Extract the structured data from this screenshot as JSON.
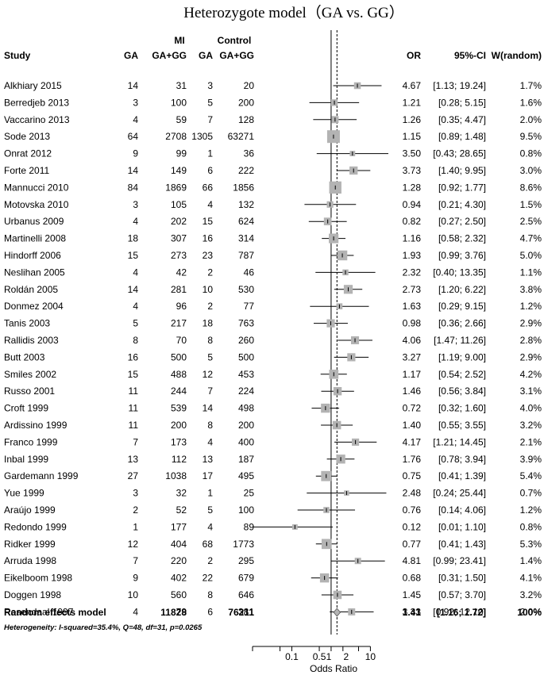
{
  "chart_data": {
    "type": "forest",
    "title": "Heterozygote model（GA vs. GG）",
    "group_labels": {
      "mi": "MI",
      "control": "Control"
    },
    "columns": {
      "study": "Study",
      "mi_events": "GA",
      "mi_total": "GA+GG",
      "ctrl_events": "GA",
      "ctrl_total": "GA+GG",
      "or": "OR",
      "ci": "95%-CI",
      "weight": "W(random)"
    },
    "studies": [
      {
        "name": "Alkhiary 2015",
        "e1": "14",
        "n1": "31",
        "e2": "3",
        "n2": "20",
        "or": 4.67,
        "lo": 1.13,
        "hi": 19.24,
        "or_text": "4.67",
        "ci_text": "[1.13; 19.24]",
        "w": 1.7,
        "w_text": "1.7%"
      },
      {
        "name": "Berredjeb 2013",
        "e1": "3",
        "n1": "100",
        "e2": "5",
        "n2": "200",
        "or": 1.21,
        "lo": 0.28,
        "hi": 5.15,
        "or_text": "1.21",
        "ci_text": "[0.28;  5.15]",
        "w": 1.6,
        "w_text": "1.6%"
      },
      {
        "name": "Vaccarino 2013",
        "e1": "4",
        "n1": "59",
        "e2": "7",
        "n2": "128",
        "or": 1.26,
        "lo": 0.35,
        "hi": 4.47,
        "or_text": "1.26",
        "ci_text": "[0.35;  4.47]",
        "w": 2.0,
        "w_text": "2.0%"
      },
      {
        "name": "Sode 2013",
        "e1": "64",
        "n1": "2708",
        "e2": "1305",
        "n2": "63271",
        "or": 1.15,
        "lo": 0.89,
        "hi": 1.48,
        "or_text": "1.15",
        "ci_text": "[0.89;  1.48]",
        "w": 9.5,
        "w_text": "9.5%"
      },
      {
        "name": "Onrat 2012",
        "e1": "9",
        "n1": "99",
        "e2": "1",
        "n2": "36",
        "or": 3.5,
        "lo": 0.43,
        "hi": 28.65,
        "or_text": "3.50",
        "ci_text": "[0.43; 28.65]",
        "w": 0.8,
        "w_text": "0.8%"
      },
      {
        "name": "Forte 2011",
        "e1": "14",
        "n1": "149",
        "e2": "6",
        "n2": "222",
        "or": 3.73,
        "lo": 1.4,
        "hi": 9.95,
        "or_text": "3.73",
        "ci_text": "[1.40;  9.95]",
        "w": 3.0,
        "w_text": "3.0%"
      },
      {
        "name": "Mannucci 2010",
        "e1": "84",
        "n1": "1869",
        "e2": "66",
        "n2": "1856",
        "or": 1.28,
        "lo": 0.92,
        "hi": 1.77,
        "or_text": "1.28",
        "ci_text": "[0.92;  1.77]",
        "w": 8.6,
        "w_text": "8.6%"
      },
      {
        "name": "Motovska 2010",
        "e1": "3",
        "n1": "105",
        "e2": "4",
        "n2": "132",
        "or": 0.94,
        "lo": 0.21,
        "hi": 4.3,
        "or_text": "0.94",
        "ci_text": "[0.21;  4.30]",
        "w": 1.5,
        "w_text": "1.5%"
      },
      {
        "name": "Urbanus 2009",
        "e1": "4",
        "n1": "202",
        "e2": "15",
        "n2": "624",
        "or": 0.82,
        "lo": 0.27,
        "hi": 2.5,
        "or_text": "0.82",
        "ci_text": "[0.27;  2.50]",
        "w": 2.5,
        "w_text": "2.5%"
      },
      {
        "name": "Martinelli 2008",
        "e1": "18",
        "n1": "307",
        "e2": "16",
        "n2": "314",
        "or": 1.16,
        "lo": 0.58,
        "hi": 2.32,
        "or_text": "1.16",
        "ci_text": "[0.58;  2.32]",
        "w": 4.7,
        "w_text": "4.7%"
      },
      {
        "name": "Hindorff 2006",
        "e1": "15",
        "n1": "273",
        "e2": "23",
        "n2": "787",
        "or": 1.93,
        "lo": 0.99,
        "hi": 3.76,
        "or_text": "1.93",
        "ci_text": "[0.99;  3.76]",
        "w": 5.0,
        "w_text": "5.0%"
      },
      {
        "name": "Neslihan 2005",
        "e1": "4",
        "n1": "42",
        "e2": "2",
        "n2": "46",
        "or": 2.32,
        "lo": 0.4,
        "hi": 13.35,
        "or_text": "2.32",
        "ci_text": "[0.40; 13.35]",
        "w": 1.1,
        "w_text": "1.1%"
      },
      {
        "name": "Roldán 2005",
        "e1": "14",
        "n1": "281",
        "e2": "10",
        "n2": "530",
        "or": 2.73,
        "lo": 1.2,
        "hi": 6.22,
        "or_text": "2.73",
        "ci_text": "[1.20;  6.22]",
        "w": 3.8,
        "w_text": "3.8%"
      },
      {
        "name": "Donmez 2004",
        "e1": "4",
        "n1": "96",
        "e2": "2",
        "n2": "77",
        "or": 1.63,
        "lo": 0.29,
        "hi": 9.15,
        "or_text": "1.63",
        "ci_text": "[0.29;  9.15]",
        "w": 1.2,
        "w_text": "1.2%"
      },
      {
        "name": "Tanis 2003",
        "e1": "5",
        "n1": "217",
        "e2": "18",
        "n2": "763",
        "or": 0.98,
        "lo": 0.36,
        "hi": 2.66,
        "or_text": "0.98",
        "ci_text": "[0.36;  2.66]",
        "w": 2.9,
        "w_text": "2.9%"
      },
      {
        "name": "Rallidis 2003",
        "e1": "8",
        "n1": "70",
        "e2": "8",
        "n2": "260",
        "or": 4.06,
        "lo": 1.47,
        "hi": 11.26,
        "or_text": "4.06",
        "ci_text": "[1.47; 11.26]",
        "w": 2.8,
        "w_text": "2.8%"
      },
      {
        "name": "Butt 2003",
        "e1": "16",
        "n1": "500",
        "e2": "5",
        "n2": "500",
        "or": 3.27,
        "lo": 1.19,
        "hi": 9.0,
        "or_text": "3.27",
        "ci_text": "[1.19;  9.00]",
        "w": 2.9,
        "w_text": "2.9%"
      },
      {
        "name": "Smiles 2002",
        "e1": "15",
        "n1": "488",
        "e2": "12",
        "n2": "453",
        "or": 1.17,
        "lo": 0.54,
        "hi": 2.52,
        "or_text": "1.17",
        "ci_text": "[0.54;  2.52]",
        "w": 4.2,
        "w_text": "4.2%"
      },
      {
        "name": "Russo 2001",
        "e1": "11",
        "n1": "244",
        "e2": "7",
        "n2": "224",
        "or": 1.46,
        "lo": 0.56,
        "hi": 3.84,
        "or_text": "1.46",
        "ci_text": "[0.56;  3.84]",
        "w": 3.1,
        "w_text": "3.1%"
      },
      {
        "name": "Croft 1999",
        "e1": "11",
        "n1": "539",
        "e2": "14",
        "n2": "498",
        "or": 0.72,
        "lo": 0.32,
        "hi": 1.6,
        "or_text": "0.72",
        "ci_text": "[0.32;  1.60]",
        "w": 4.0,
        "w_text": "4.0%"
      },
      {
        "name": "Ardissino 1999",
        "e1": "11",
        "n1": "200",
        "e2": "8",
        "n2": "200",
        "or": 1.4,
        "lo": 0.55,
        "hi": 3.55,
        "or_text": "1.40",
        "ci_text": "[0.55;  3.55]",
        "w": 3.2,
        "w_text": "3.2%"
      },
      {
        "name": "Franco 1999",
        "e1": "7",
        "n1": "173",
        "e2": "4",
        "n2": "400",
        "or": 4.17,
        "lo": 1.21,
        "hi": 14.45,
        "or_text": "4.17",
        "ci_text": "[1.21; 14.45]",
        "w": 2.1,
        "w_text": "2.1%"
      },
      {
        "name": "Inbal 1999",
        "e1": "13",
        "n1": "112",
        "e2": "13",
        "n2": "187",
        "or": 1.76,
        "lo": 0.78,
        "hi": 3.94,
        "or_text": "1.76",
        "ci_text": "[0.78;  3.94]",
        "w": 3.9,
        "w_text": "3.9%"
      },
      {
        "name": "Gardemann 1999",
        "e1": "27",
        "n1": "1038",
        "e2": "17",
        "n2": "495",
        "or": 0.75,
        "lo": 0.41,
        "hi": 1.39,
        "or_text": "0.75",
        "ci_text": "[0.41;  1.39]",
        "w": 5.4,
        "w_text": "5.4%"
      },
      {
        "name": "Yue 1999",
        "e1": "3",
        "n1": "32",
        "e2": "1",
        "n2": "25",
        "or": 2.48,
        "lo": 0.24,
        "hi": 25.44,
        "or_text": "2.48",
        "ci_text": "[0.24; 25.44]",
        "w": 0.7,
        "w_text": "0.7%"
      },
      {
        "name": "Araújo 1999",
        "e1": "2",
        "n1": "52",
        "e2": "5",
        "n2": "100",
        "or": 0.76,
        "lo": 0.14,
        "hi": 4.06,
        "or_text": "0.76",
        "ci_text": "[0.14;  4.06]",
        "w": 1.2,
        "w_text": "1.2%"
      },
      {
        "name": "Redondo 1999",
        "e1": "1",
        "n1": "177",
        "e2": "4",
        "n2": "89",
        "or": 0.12,
        "lo": 0.01,
        "hi": 1.1,
        "or_text": "0.12",
        "ci_text": "[0.01;  1.10]",
        "w": 0.8,
        "w_text": "0.8%"
      },
      {
        "name": "Ridker 1999",
        "e1": "12",
        "n1": "404",
        "e2": "68",
        "n2": "1773",
        "or": 0.77,
        "lo": 0.41,
        "hi": 1.43,
        "or_text": "0.77",
        "ci_text": "[0.41;  1.43]",
        "w": 5.3,
        "w_text": "5.3%"
      },
      {
        "name": "Arruda 1998",
        "e1": "7",
        "n1": "220",
        "e2": "2",
        "n2": "295",
        "or": 4.81,
        "lo": 0.99,
        "hi": 23.41,
        "or_text": "4.81",
        "ci_text": "[0.99; 23.41]",
        "w": 1.4,
        "w_text": "1.4%"
      },
      {
        "name": "Eikelboom 1998",
        "e1": "9",
        "n1": "402",
        "e2": "22",
        "n2": "679",
        "or": 0.68,
        "lo": 0.31,
        "hi": 1.5,
        "or_text": "0.68",
        "ci_text": "[0.31;  1.50]",
        "w": 4.1,
        "w_text": "4.1%"
      },
      {
        "name": "Doggen 1998",
        "e1": "10",
        "n1": "560",
        "e2": "8",
        "n2": "646",
        "or": 1.45,
        "lo": 0.57,
        "hi": 3.7,
        "or_text": "1.45",
        "ci_text": "[0.57;  3.70]",
        "w": 3.2,
        "w_text": "3.2%"
      },
      {
        "name": "Rosendaal 1997",
        "e1": "4",
        "n1": "79",
        "e2": "6",
        "n2": "381",
        "or": 3.33,
        "lo": 0.92,
        "hi": 12.1,
        "or_text": "3.33",
        "ci_text": "[0.92; 12.10]",
        "w": 2.0,
        "w_text": "2.0%"
      }
    ],
    "summary": {
      "label": "Random effects model",
      "n1": "11828",
      "n2": "76211",
      "or": 1.41,
      "lo": 1.16,
      "hi": 1.72,
      "or_text": "1.41",
      "ci_text": "[1.16; 1.72]",
      "w_text": "100%"
    },
    "heterogeneity": "Heterogeneity: I-squared=35.4%, Q=48, df=31, p=0.0265",
    "x_axis": {
      "label": "Odds Ratio",
      "scale": "log",
      "range": [
        0.01,
        30
      ],
      "ticks": [
        0.1,
        0.5,
        1,
        2,
        10
      ],
      "tick_labels": [
        "0.1",
        "0.5",
        "1",
        "2",
        "10"
      ],
      "minor_ticks": [
        0.01,
        0.05,
        5
      ]
    },
    "colors": {
      "box": "#b3b3b3",
      "line": "#000000",
      "diamond": "#b3b3b3"
    }
  }
}
